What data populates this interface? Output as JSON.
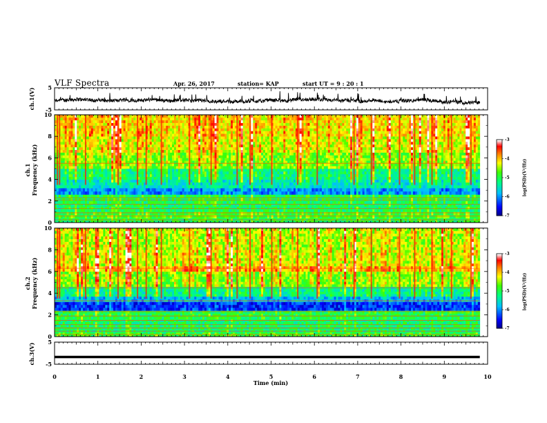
{
  "header": {
    "title": "VLF Spectra",
    "date": "Apr. 26, 2017",
    "station": "station= KAP",
    "start": "start UT =  9 : 20 : 1"
  },
  "chart_data": [
    {
      "type": "line",
      "panel": "ch1-waveform",
      "ylabel": "ch.1(V)",
      "ylim": [
        -5,
        5
      ],
      "yticks": [
        "5",
        "-5"
      ],
      "x_range_min": [
        0,
        9.82
      ],
      "description_values": "noisy amplitude trace around ~-1 V with spikes reaching ~+3 V"
    },
    {
      "type": "heatmap",
      "panel": "ch1-spectrogram",
      "ylabel_lines": [
        "ch.1",
        "Frequency (kHz)"
      ],
      "ylim": [
        0,
        10
      ],
      "yticks": [
        "0",
        "2",
        "4",
        "6",
        "8",
        "10"
      ],
      "x_range_min": [
        0,
        9.82
      ],
      "colorbar": {
        "label": "log(PSD)(V²/Hz)",
        "range": [
          -7,
          -3
        ],
        "ticks": [
          "-3",
          "-4",
          "-5",
          "-6",
          "-7"
        ]
      }
    },
    {
      "type": "heatmap",
      "panel": "ch2-spectrogram",
      "ylabel_lines": [
        "ch.2",
        "Frequency (kHz)"
      ],
      "ylim": [
        0,
        10
      ],
      "yticks": [
        "0",
        "2",
        "4",
        "6",
        "8",
        "10"
      ],
      "x_range_min": [
        0,
        9.82
      ],
      "colorbar": {
        "label": "log(PSD)(V²/Hz)",
        "range": [
          -7,
          -3
        ],
        "ticks": [
          "-3",
          "-4",
          "-5",
          "-6",
          "-7"
        ]
      }
    },
    {
      "type": "line",
      "panel": "ch3-waveform",
      "ylabel": "ch.3(V)",
      "ylim": [
        -5,
        5
      ],
      "yticks": [
        "5",
        "-5"
      ],
      "x_range_min": [
        0,
        9.82
      ],
      "constant_value": -1.7
    }
  ],
  "xaxis": {
    "label": "Time (min)",
    "range": [
      0,
      10
    ],
    "ticks": [
      "0",
      "1",
      "2",
      "3",
      "4",
      "5",
      "6",
      "7",
      "8",
      "9",
      "10"
    ]
  },
  "colors": {
    "scale": [
      "#000080",
      "#0000ff",
      "#00bfff",
      "#00ff80",
      "#40ff00",
      "#ffff00",
      "#ff8000",
      "#ff0000",
      "#ff8080",
      "#ffffff"
    ]
  }
}
